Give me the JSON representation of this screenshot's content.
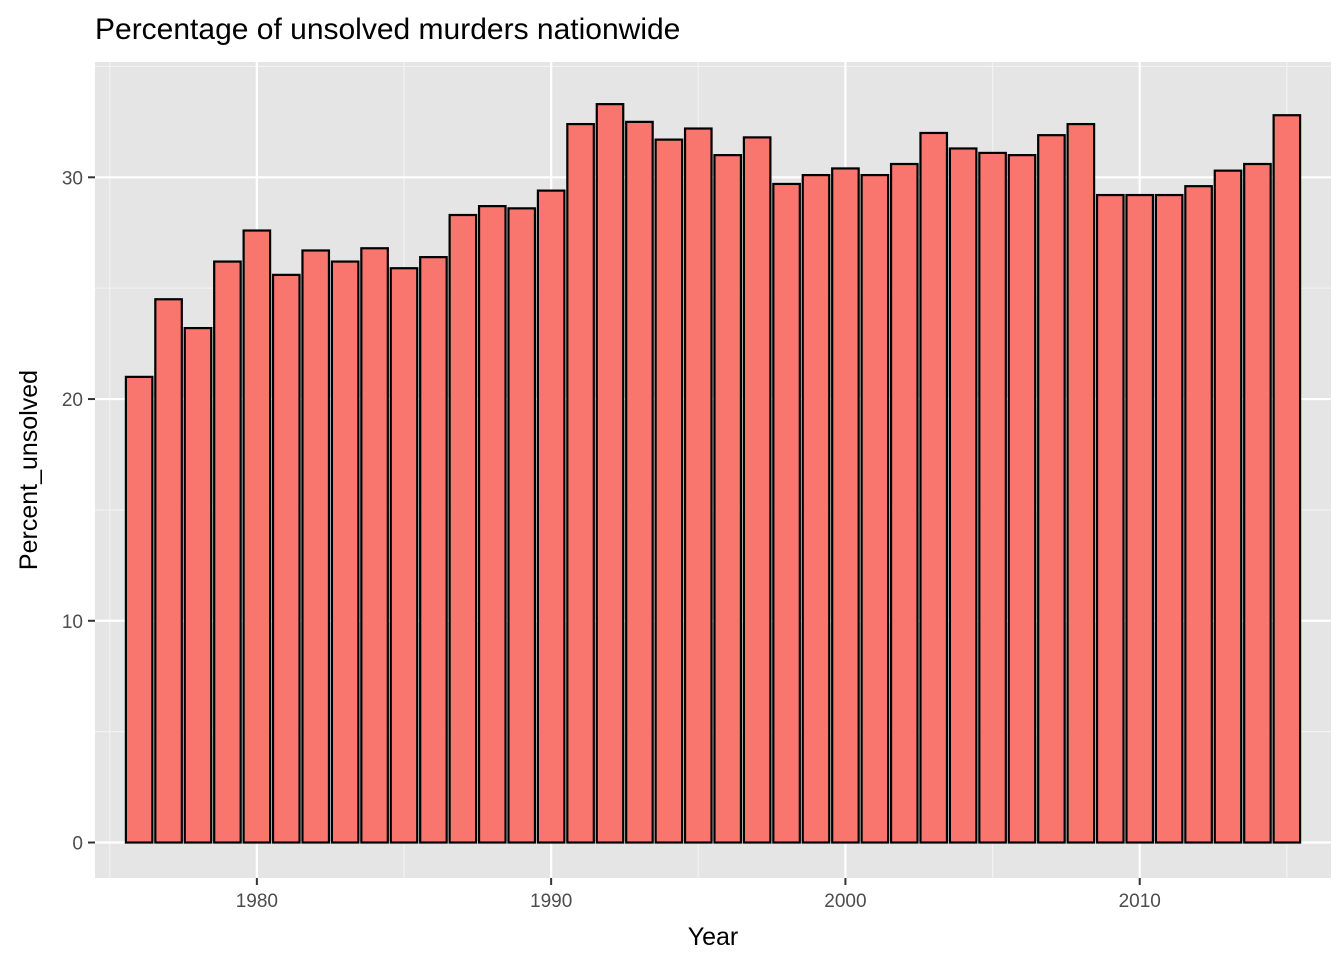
{
  "chart_data": {
    "type": "bar",
    "title": "Percentage of unsolved murders nationwide",
    "xlabel": "Year",
    "ylabel": "Percent_unsolved",
    "x": [
      1976,
      1977,
      1978,
      1979,
      1980,
      1981,
      1982,
      1983,
      1984,
      1985,
      1986,
      1987,
      1988,
      1989,
      1990,
      1991,
      1992,
      1993,
      1994,
      1995,
      1996,
      1997,
      1998,
      1999,
      2000,
      2001,
      2002,
      2003,
      2004,
      2005,
      2006,
      2007,
      2008,
      2009,
      2010,
      2011,
      2012,
      2013,
      2014,
      2015
    ],
    "values": [
      21.0,
      24.5,
      23.2,
      26.2,
      27.6,
      25.6,
      26.7,
      26.2,
      26.8,
      25.9,
      26.4,
      28.3,
      28.7,
      28.6,
      29.4,
      32.4,
      33.3,
      32.5,
      31.7,
      32.2,
      31.0,
      31.8,
      29.7,
      30.1,
      30.4,
      30.1,
      30.6,
      32.0,
      31.3,
      31.1,
      31.0,
      31.9,
      32.4,
      29.2,
      29.2,
      29.2,
      29.6,
      30.3,
      30.6,
      32.8
    ],
    "xlim": [
      1974.5,
      1916.5
    ],
    "ylim": [
      -1.6,
      35.2
    ],
    "x_breaks": [
      1980,
      1990,
      2000,
      2010
    ],
    "x_tick_labels": [
      "1980",
      "1990",
      "2000",
      "2010"
    ],
    "y_breaks": [
      0,
      10,
      20,
      30
    ],
    "y_tick_labels": [
      "0",
      "10",
      "20",
      "30"
    ],
    "grid": true,
    "legend": "none",
    "colors": {
      "bar_fill": "#F8766D",
      "bar_outline": "#000000",
      "panel_background": "#E5E5E5",
      "grid_major": "#FFFFFF",
      "grid_minor": "#F2F2F2"
    }
  }
}
